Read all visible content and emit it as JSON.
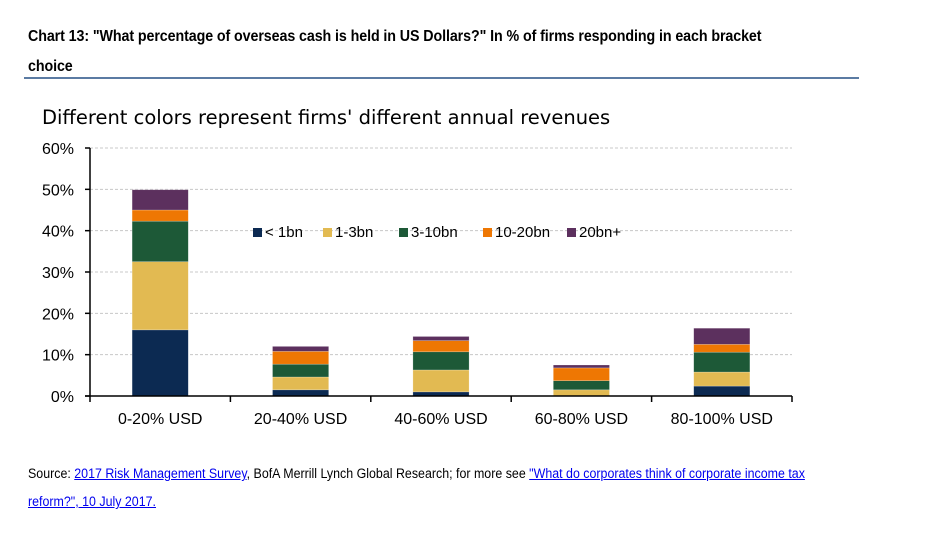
{
  "header": {
    "title": "Chart 13: \"What percentage of overseas cash is held in US Dollars?\" In % of firms responding in each bracket choice"
  },
  "source": {
    "prefix": "Source: ",
    "link1_text": "2017 Risk Management Survey",
    "middle": ", BofA Merrill Lynch Global Research; for more see ",
    "link2_text": "\"What do corporates think of corporate income tax reform?\", 10 July 2017."
  },
  "chart_data": {
    "type": "bar",
    "stacked": true,
    "title": "Chart 13: \"What percentage of overseas cash is held in US Dollars?\" In % of firms responding in each bracket choice",
    "subtitle": "Different colors represent firms' different annual revenues",
    "xlabel": "",
    "ylabel": "",
    "ylim": [
      0,
      60
    ],
    "yticks": [
      0,
      10,
      20,
      30,
      40,
      50,
      60
    ],
    "ytick_labels": [
      "0%",
      "10%",
      "20%",
      "30%",
      "40%",
      "50%",
      "60%"
    ],
    "grid": true,
    "legend_position": "inside-top-center",
    "categories": [
      "0-20% USD",
      "20-40% USD",
      "40-60% USD",
      "60-80% USD",
      "80-100% USD"
    ],
    "series": [
      {
        "name": "< 1bn",
        "color": "#0c2a52",
        "values": [
          16.0,
          1.5,
          1.0,
          0.0,
          2.4
        ]
      },
      {
        "name": "1-3bn",
        "color": "#e2ba52",
        "values": [
          16.5,
          3.1,
          5.3,
          1.5,
          3.4
        ]
      },
      {
        "name": "3-10bn",
        "color": "#1d5937",
        "values": [
          9.8,
          3.1,
          4.4,
          2.2,
          4.8
        ]
      },
      {
        "name": "10-20bn",
        "color": "#ee7703",
        "values": [
          2.7,
          3.1,
          2.7,
          3.1,
          1.9
        ]
      },
      {
        "name": "20bn+",
        "color": "#5c305e",
        "values": [
          4.9,
          1.2,
          1.0,
          0.7,
          3.9
        ]
      }
    ]
  }
}
